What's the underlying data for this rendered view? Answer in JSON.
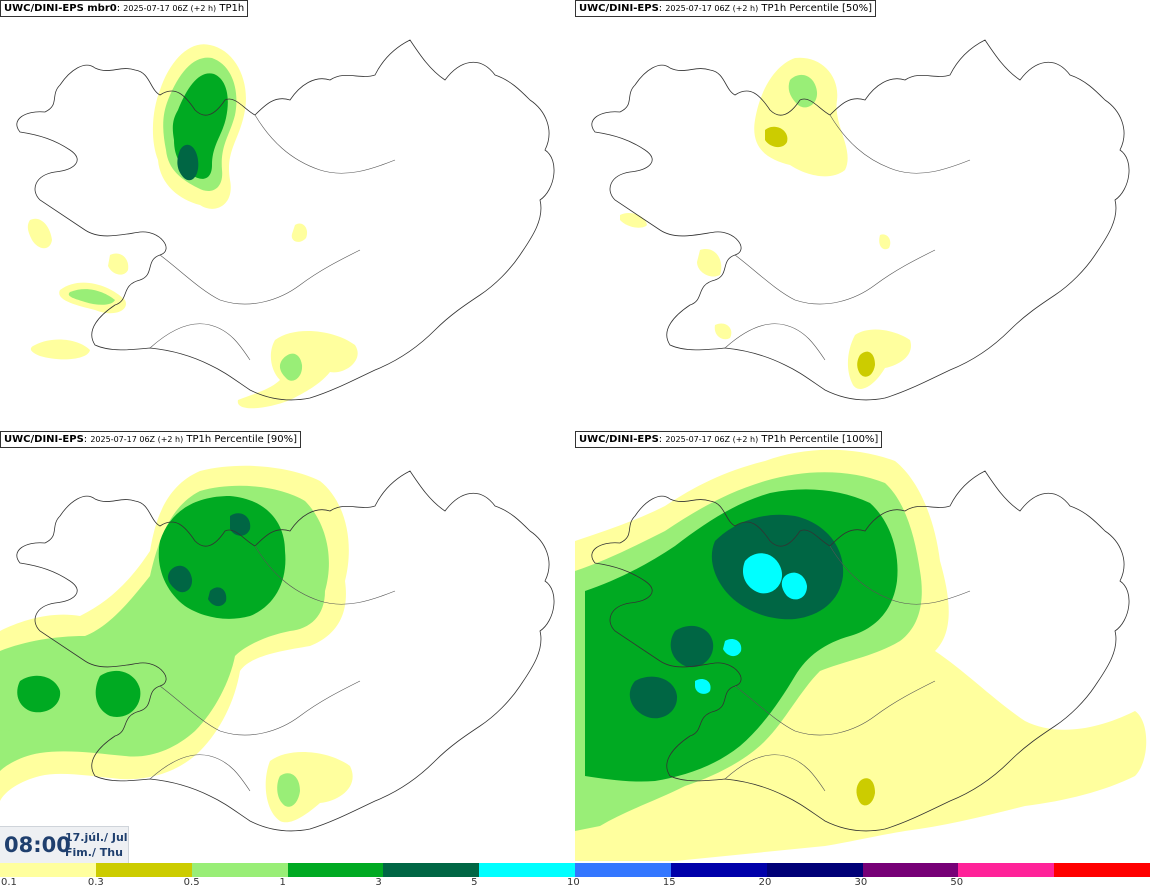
{
  "panels": [
    {
      "model": "UWC/DINI-EPS mbr0",
      "run": "2025-07-17 06Z (+2 h)",
      "field": "TP1h"
    },
    {
      "model": "UWC/DINI-EPS",
      "run": "2025-07-17 06Z (+2 h)",
      "field": "TP1h Percentile [50%]"
    },
    {
      "model": "UWC/DINI-EPS",
      "run": "2025-07-17 06Z (+2 h)",
      "field": "TP1h Percentile [90%]"
    },
    {
      "model": "UWC/DINI-EPS",
      "run": "2025-07-17 06Z (+2 h)",
      "field": "TP1h Percentile [100%]"
    }
  ],
  "valid_time": {
    "time": "08:00",
    "date_line1": "17.júl./ Jul",
    "date_line2": "Fim./ Thu"
  },
  "legend": {
    "colors": [
      "#ffff9e",
      "#cccc00",
      "#99ee77",
      "#00aa22",
      "#006644",
      "#00ffff",
      "#3377ff",
      "#0000aa",
      "#000077",
      "#770077",
      "#ff2299",
      "#ff0000"
    ],
    "labels": [
      "0.1",
      "0.3",
      "0.5",
      "1",
      "3",
      "5",
      "10",
      "15",
      "20",
      "30",
      "50"
    ]
  }
}
